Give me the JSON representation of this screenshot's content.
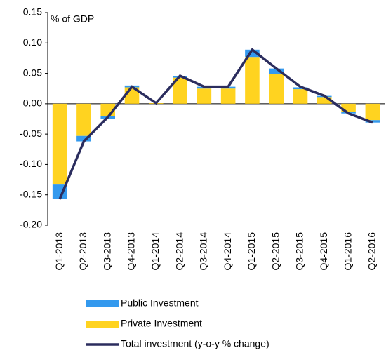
{
  "chart_data": {
    "type": "bar_line",
    "y_label": "% of GDP",
    "categories": [
      "Q1-2013",
      "Q2-2013",
      "Q3-2013",
      "Q4-2013",
      "Q1-2014",
      "Q2-2014",
      "Q3-2014",
      "Q4-2014",
      "Q1-2015",
      "Q2-2015",
      "Q3-2015",
      "Q4-2015",
      "Q1-2016",
      "Q2-2016"
    ],
    "series": [
      {
        "name": "Public Investment",
        "color": "#3399ee",
        "kind": "bar",
        "values": [
          -0.025,
          -0.009,
          -0.005,
          0.003,
          0,
          0.003,
          0.003,
          0.003,
          0.012,
          0.009,
          0.003,
          0.002,
          -0.002,
          -0.004
        ]
      },
      {
        "name": "Private Investment",
        "color": "#ffd320",
        "kind": "bar",
        "values": [
          -0.132,
          -0.053,
          -0.02,
          0.027,
          0.001,
          0.043,
          0.025,
          0.025,
          0.077,
          0.049,
          0.024,
          0.011,
          -0.014,
          -0.027
        ]
      },
      {
        "name": "Total investment (y-o-y % change)",
        "color": "#2b2d5e",
        "kind": "line",
        "values": [
          -0.157,
          -0.062,
          -0.022,
          0.028,
          0.001,
          0.046,
          0.028,
          0.028,
          0.089,
          0.058,
          0.028,
          0.013,
          -0.016,
          -0.031
        ]
      }
    ],
    "ylim": [
      -0.2,
      0.15
    ],
    "yticks": [
      0.15,
      {
        "value": 0.1,
        "label": "0.10"
      },
      0.05,
      {
        "value": 0,
        "label": "0.00"
      },
      -0.05,
      {
        "value": -0.1,
        "label": "-0.10"
      },
      -0.15,
      {
        "value": -0.2,
        "label": "-0.20"
      }
    ]
  }
}
